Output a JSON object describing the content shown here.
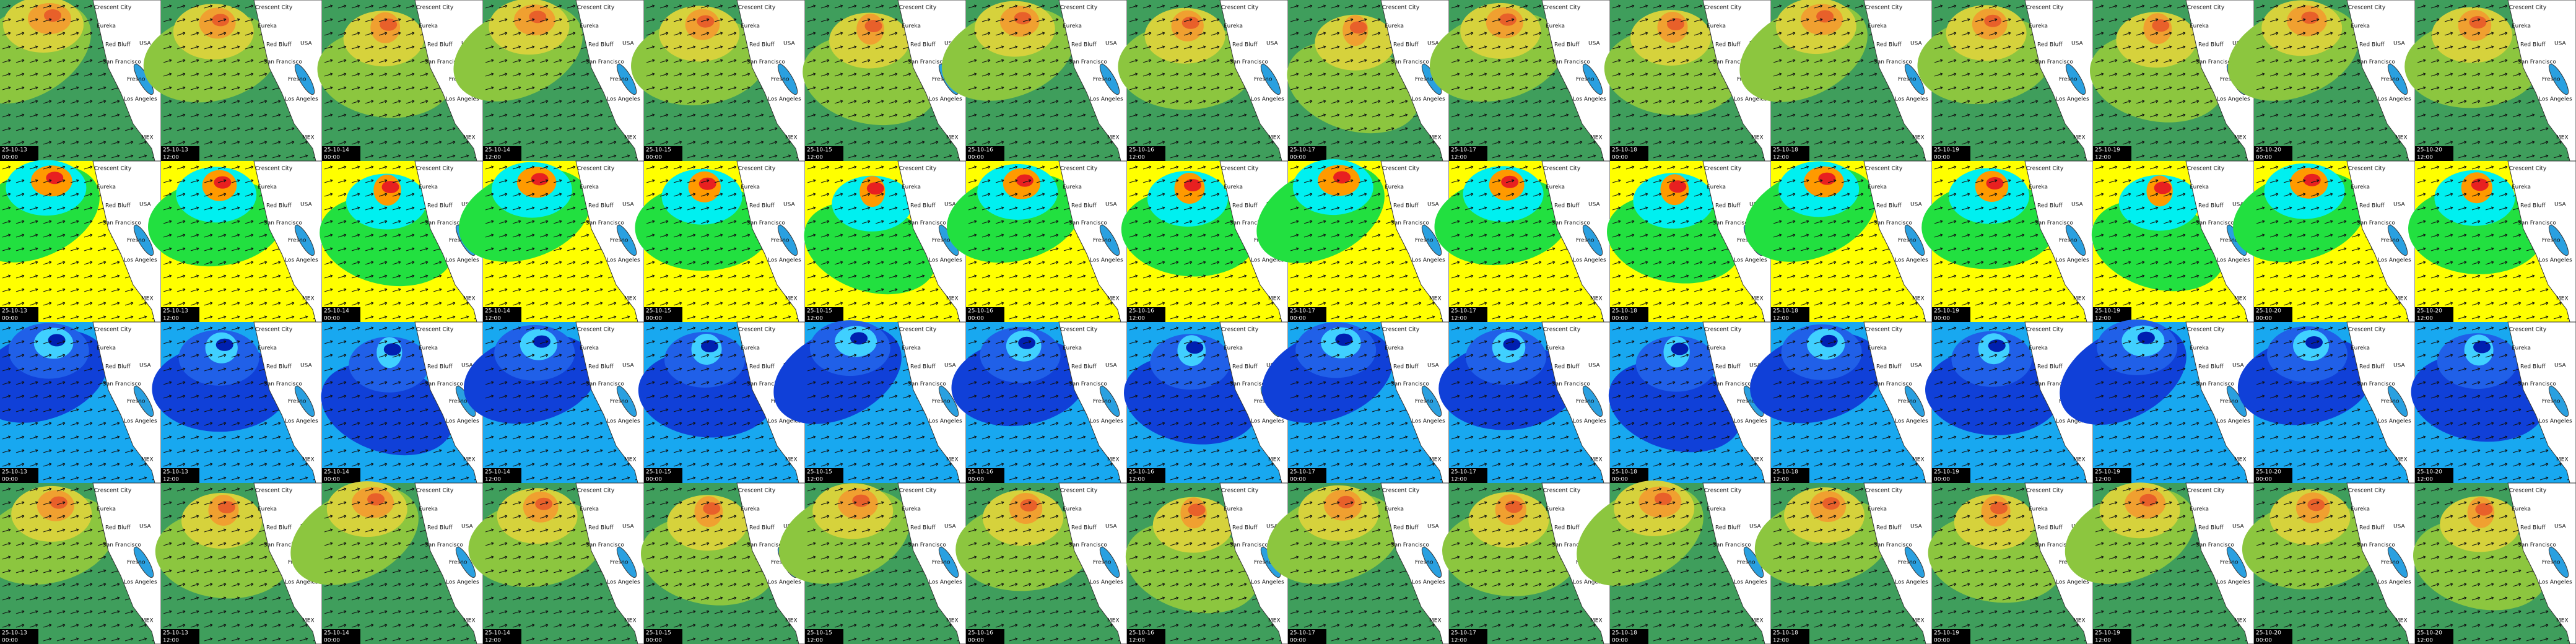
{
  "columns": [
    {
      "date": "25-10-13",
      "time": "00:00"
    },
    {
      "date": "25-10-13",
      "time": "12:00"
    },
    {
      "date": "25-10-14",
      "time": "00:00"
    },
    {
      "date": "25-10-14",
      "time": "12:00"
    },
    {
      "date": "25-10-15",
      "time": "00:00"
    },
    {
      "date": "25-10-15",
      "time": "12:00"
    },
    {
      "date": "25-10-16",
      "time": "00:00"
    },
    {
      "date": "25-10-16",
      "time": "12:00"
    },
    {
      "date": "25-10-17",
      "time": "00:00"
    },
    {
      "date": "25-10-17",
      "time": "12:00"
    },
    {
      "date": "25-10-18",
      "time": "00:00"
    },
    {
      "date": "25-10-18",
      "time": "12:00"
    },
    {
      "date": "25-10-19",
      "time": "00:00"
    },
    {
      "date": "25-10-19",
      "time": "12:00"
    },
    {
      "date": "25-10-20",
      "time": "00:00"
    },
    {
      "date": "25-10-20",
      "time": "12:00"
    }
  ],
  "places": [
    "Crescent City",
    "Eureka",
    "Red Bluff",
    "San Francisco",
    "Fresno",
    "Los Angeles",
    "USA",
    "MEX"
  ]
}
